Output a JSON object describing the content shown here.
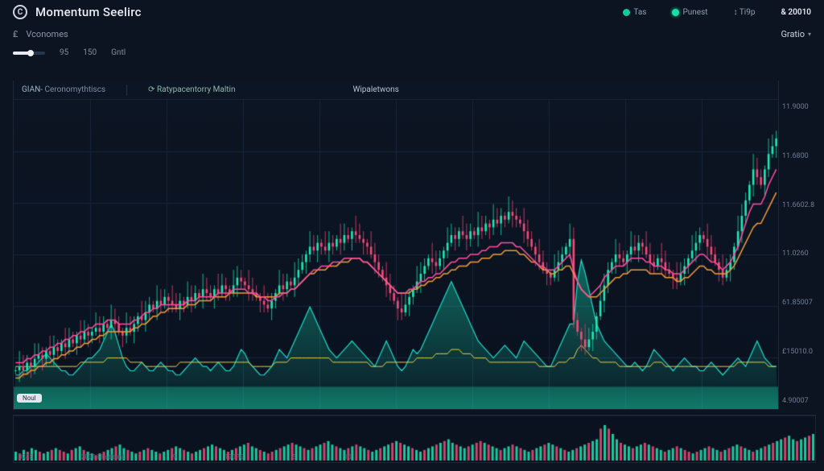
{
  "app": {
    "title": "Momentum Seelirc",
    "logo_letter": "C"
  },
  "header": {
    "items": [
      {
        "dot": "teal",
        "label": "Tas"
      },
      {
        "dot": "green",
        "label": "Punest"
      },
      {
        "dot": null,
        "label": "↕ Ti9p"
      },
      {
        "dot": null,
        "label": "& 20010",
        "strong": true
      }
    ]
  },
  "subheader": {
    "left_icon": "₤",
    "left_label": "Vconomes",
    "right_label": "Gratio",
    "right_chevron": "▾"
  },
  "slider": {
    "val_left": "95",
    "val_mid": "150",
    "val_right": "Gntl",
    "fill_pct": 55
  },
  "chart_tabs": {
    "t1_pre": "GIAN-",
    "t1": "Ceronomythtiscs",
    "t2_icon": "⟳",
    "t2": "Ratypacentorry Maltin",
    "t3": "Wipaletwons"
  },
  "axis_right": [
    "11.9000",
    "11.6800",
    "11.6602.8",
    "11.0260",
    "61.85007",
    "£15010.0",
    "4.90007"
  ],
  "pill_label": "Noul",
  "vol_x_labels": [
    "0245",
    "2001 Photfront",
    "9",
    "190PG",
    "5",
    "10"
  ],
  "colors": {
    "bg": "#0b1420",
    "panel": "#0a1220",
    "grid": "#18253a",
    "grid_strong": "#223148",
    "candle_up": "#1de9b6",
    "candle_up_dark": "#12b892",
    "candle_down": "#f04d7a",
    "candle_down_dark": "#c13a62",
    "line_orange": "#f39b3b",
    "line_pink": "#ff4fa3",
    "line_teal": "#1adccb",
    "line_yellow": "#e7d24b",
    "area_fill_top": "rgba(24,210,170,0.55)",
    "area_fill_bot": "rgba(24,210,170,0.05)",
    "vol_lowband": "rgba(22,200,160,0.28)"
  },
  "chart": {
    "width_units": 200,
    "price_min": 20,
    "price_max": 100,
    "base_band_height": 12,
    "v_grid_count": 10,
    "h_grid_count": 6,
    "trend_close": [
      30,
      31,
      30,
      32,
      31,
      33,
      34,
      33,
      35,
      34,
      36,
      35,
      37,
      36,
      38,
      37,
      39,
      38,
      40,
      39,
      40,
      41,
      40,
      42,
      41,
      43,
      42,
      40,
      39,
      41,
      40,
      42,
      44,
      43,
      45,
      47,
      46,
      48,
      47,
      49,
      48,
      47,
      46,
      48,
      47,
      49,
      48,
      50,
      49,
      51,
      50,
      49,
      51,
      50,
      52,
      51,
      50,
      52,
      54,
      53,
      52,
      51,
      50,
      49,
      48,
      47,
      46,
      48,
      50,
      52,
      51,
      53,
      52,
      54,
      56,
      58,
      60,
      62,
      61,
      63,
      62,
      61,
      63,
      62,
      64,
      63,
      65,
      64,
      66,
      65,
      64,
      63,
      62,
      60,
      58,
      56,
      54,
      52,
      50,
      48,
      46,
      45,
      47,
      49,
      51,
      53,
      55,
      57,
      59,
      58,
      57,
      59,
      61,
      63,
      65,
      64,
      66,
      65,
      64,
      66,
      65,
      67,
      66,
      68,
      67,
      69,
      68,
      70,
      69,
      71,
      70,
      69,
      68,
      66,
      64,
      62,
      60,
      58,
      56,
      55,
      54,
      56,
      58,
      60,
      62,
      64,
      43,
      40,
      38,
      36,
      38,
      40,
      44,
      48,
      52,
      56,
      58,
      60,
      59,
      58,
      60,
      62,
      61,
      63,
      62,
      60,
      58,
      57,
      59,
      58,
      56,
      55,
      54,
      53,
      55,
      57,
      59,
      61,
      63,
      65,
      64,
      62,
      60,
      58,
      56,
      54,
      56,
      58,
      62,
      66,
      70,
      74,
      78,
      82,
      80,
      78,
      82,
      86,
      88,
      90
    ],
    "ma_orange": [
      28,
      28,
      29,
      29,
      30,
      30,
      31,
      31,
      32,
      32,
      33,
      33,
      34,
      34,
      35,
      35,
      36,
      36,
      37,
      37,
      38,
      38,
      39,
      39,
      40,
      40,
      40,
      40,
      40,
      40,
      40,
      41,
      41,
      42,
      42,
      43,
      44,
      44,
      45,
      45,
      46,
      46,
      46,
      46,
      46,
      47,
      47,
      47,
      48,
      48,
      48,
      48,
      49,
      49,
      49,
      49,
      50,
      50,
      50,
      50,
      50,
      50,
      50,
      49,
      49,
      49,
      49,
      49,
      49,
      50,
      50,
      50,
      51,
      51,
      52,
      53,
      54,
      55,
      55,
      56,
      56,
      56,
      57,
      57,
      57,
      58,
      58,
      58,
      59,
      59,
      59,
      58,
      58,
      57,
      56,
      55,
      54,
      53,
      52,
      51,
      50,
      50,
      50,
      50,
      51,
      51,
      52,
      52,
      53,
      53,
      54,
      54,
      55,
      55,
      56,
      56,
      57,
      57,
      57,
      58,
      58,
      58,
      59,
      59,
      59,
      60,
      60,
      60,
      61,
      61,
      61,
      61,
      60,
      60,
      59,
      58,
      58,
      57,
      56,
      56,
      55,
      55,
      56,
      56,
      57,
      57,
      55,
      53,
      51,
      50,
      49,
      49,
      49,
      50,
      51,
      52,
      53,
      54,
      54,
      55,
      55,
      56,
      56,
      56,
      56,
      56,
      55,
      55,
      55,
      55,
      54,
      54,
      54,
      53,
      53,
      54,
      54,
      55,
      56,
      57,
      57,
      56,
      56,
      55,
      55,
      55,
      55,
      56,
      57,
      59,
      61,
      63,
      65,
      67,
      68,
      68,
      70,
      72,
      74,
      76
    ],
    "ma_pink": [
      32,
      32,
      32,
      33,
      33,
      34,
      34,
      35,
      35,
      36,
      36,
      37,
      37,
      38,
      38,
      39,
      39,
      40,
      40,
      41,
      41,
      42,
      42,
      42,
      43,
      43,
      43,
      42,
      42,
      42,
      42,
      43,
      43,
      44,
      45,
      45,
      46,
      46,
      47,
      47,
      47,
      47,
      47,
      47,
      47,
      48,
      48,
      48,
      49,
      49,
      49,
      49,
      49,
      50,
      50,
      50,
      50,
      51,
      51,
      51,
      51,
      50,
      50,
      50,
      49,
      49,
      48,
      48,
      49,
      49,
      50,
      50,
      51,
      51,
      52,
      53,
      54,
      55,
      56,
      56,
      57,
      57,
      57,
      58,
      58,
      58,
      59,
      59,
      59,
      59,
      59,
      58,
      58,
      57,
      56,
      55,
      54,
      53,
      52,
      51,
      50,
      50,
      50,
      51,
      51,
      52,
      53,
      53,
      54,
      54,
      55,
      55,
      56,
      57,
      58,
      58,
      59,
      59,
      59,
      60,
      60,
      60,
      61,
      61,
      62,
      62,
      62,
      63,
      63,
      63,
      63,
      62,
      62,
      61,
      60,
      59,
      58,
      57,
      57,
      56,
      56,
      56,
      57,
      58,
      59,
      60,
      56,
      53,
      51,
      50,
      49,
      50,
      51,
      52,
      54,
      55,
      56,
      57,
      57,
      57,
      58,
      59,
      59,
      59,
      59,
      58,
      58,
      57,
      57,
      57,
      56,
      56,
      55,
      55,
      55,
      56,
      57,
      58,
      59,
      60,
      60,
      59,
      58,
      58,
      57,
      56,
      57,
      58,
      60,
      62,
      65,
      68,
      71,
      73,
      73,
      73,
      75,
      78,
      80,
      82
    ],
    "area_line": [
      8,
      8,
      9,
      9,
      10,
      10,
      11,
      12,
      13,
      12,
      11,
      10,
      9,
      9,
      8,
      8,
      9,
      10,
      11,
      12,
      12,
      13,
      14,
      16,
      18,
      20,
      18,
      15,
      12,
      10,
      9,
      9,
      10,
      11,
      10,
      9,
      9,
      10,
      11,
      10,
      9,
      9,
      8,
      8,
      9,
      10,
      11,
      12,
      11,
      10,
      10,
      9,
      10,
      11,
      10,
      9,
      9,
      10,
      12,
      14,
      13,
      11,
      10,
      9,
      8,
      8,
      9,
      10,
      12,
      14,
      13,
      12,
      14,
      16,
      18,
      20,
      22,
      24,
      22,
      20,
      18,
      16,
      14,
      13,
      12,
      13,
      14,
      15,
      16,
      15,
      14,
      13,
      12,
      11,
      10,
      12,
      14,
      16,
      14,
      12,
      10,
      9,
      10,
      12,
      14,
      13,
      14,
      16,
      18,
      20,
      22,
      24,
      26,
      28,
      30,
      28,
      26,
      24,
      22,
      20,
      18,
      16,
      15,
      14,
      13,
      12,
      13,
      14,
      15,
      14,
      13,
      12,
      14,
      16,
      15,
      14,
      13,
      12,
      11,
      10,
      10,
      12,
      14,
      16,
      18,
      20,
      20,
      30,
      35,
      32,
      28,
      24,
      20,
      18,
      16,
      15,
      14,
      13,
      12,
      11,
      10,
      10,
      11,
      10,
      9,
      10,
      12,
      14,
      13,
      12,
      11,
      10,
      9,
      10,
      11,
      12,
      11,
      10,
      10,
      9,
      9,
      10,
      11,
      10,
      9,
      8,
      9,
      10,
      11,
      12,
      11,
      10,
      12,
      14,
      16,
      14,
      12,
      11,
      10,
      10
    ],
    "yellow_line": [
      10,
      10,
      10,
      10,
      10,
      10,
      10,
      10,
      10,
      10,
      10,
      10,
      10,
      10,
      10,
      10,
      10,
      11,
      11,
      11,
      11,
      11,
      11,
      11,
      12,
      12,
      12,
      12,
      12,
      12,
      11,
      11,
      11,
      11,
      10,
      10,
      10,
      10,
      10,
      10,
      10,
      10,
      10,
      11,
      11,
      11,
      11,
      11,
      11,
      11,
      11,
      11,
      11,
      11,
      11,
      11,
      11,
      11,
      11,
      11,
      11,
      11,
      10,
      10,
      10,
      10,
      10,
      10,
      11,
      11,
      11,
      11,
      12,
      12,
      12,
      12,
      12,
      12,
      12,
      12,
      12,
      12,
      12,
      11,
      11,
      11,
      11,
      11,
      11,
      11,
      11,
      11,
      11,
      10,
      10,
      10,
      10,
      11,
      11,
      11,
      11,
      11,
      11,
      11,
      11,
      12,
      12,
      12,
      12,
      12,
      13,
      13,
      13,
      13,
      14,
      14,
      14,
      13,
      13,
      13,
      12,
      12,
      12,
      12,
      11,
      11,
      11,
      11,
      11,
      11,
      11,
      11,
      11,
      11,
      11,
      11,
      11,
      10,
      10,
      10,
      10,
      10,
      11,
      11,
      11,
      12,
      12,
      14,
      15,
      14,
      13,
      12,
      12,
      11,
      11,
      11,
      11,
      11,
      10,
      10,
      10,
      10,
      10,
      10,
      10,
      10,
      10,
      11,
      11,
      11,
      10,
      10,
      10,
      10,
      10,
      10,
      10,
      10,
      10,
      10,
      10,
      10,
      10,
      10,
      10,
      10,
      10,
      10,
      10,
      11,
      11,
      11,
      11,
      11,
      11,
      11,
      11,
      10,
      10,
      10
    ]
  },
  "volume": {
    "bars": [
      5,
      4,
      6,
      5,
      7,
      6,
      5,
      4,
      5,
      6,
      7,
      6,
      5,
      4,
      6,
      7,
      8,
      6,
      5,
      4,
      3,
      4,
      5,
      6,
      7,
      8,
      9,
      7,
      6,
      5,
      4,
      5,
      6,
      7,
      6,
      5,
      4,
      5,
      6,
      7,
      8,
      7,
      6,
      5,
      4,
      5,
      6,
      7,
      8,
      9,
      8,
      7,
      6,
      5,
      6,
      7,
      8,
      9,
      10,
      8,
      7,
      6,
      5,
      4,
      5,
      6,
      7,
      8,
      9,
      10,
      9,
      8,
      7,
      6,
      7,
      8,
      9,
      10,
      11,
      9,
      8,
      7,
      6,
      7,
      8,
      9,
      8,
      7,
      6,
      5,
      6,
      7,
      8,
      9,
      10,
      11,
      10,
      9,
      8,
      7,
      6,
      5,
      6,
      7,
      8,
      9,
      10,
      11,
      12,
      10,
      9,
      8,
      7,
      8,
      9,
      10,
      11,
      10,
      9,
      8,
      7,
      6,
      7,
      8,
      9,
      8,
      7,
      6,
      5,
      6,
      7,
      8,
      9,
      10,
      9,
      8,
      7,
      6,
      5,
      6,
      7,
      8,
      9,
      10,
      11,
      12,
      18,
      20,
      18,
      15,
      12,
      10,
      9,
      8,
      7,
      8,
      9,
      10,
      9,
      8,
      7,
      6,
      5,
      6,
      7,
      8,
      7,
      6,
      5,
      4,
      5,
      6,
      7,
      8,
      7,
      6,
      5,
      6,
      7,
      8,
      9,
      8,
      7,
      6,
      5,
      6,
      7,
      8,
      9,
      10,
      11,
      12,
      13,
      14,
      12,
      11,
      12,
      13,
      14,
      15
    ],
    "colors_up_ratio": 0.6
  }
}
